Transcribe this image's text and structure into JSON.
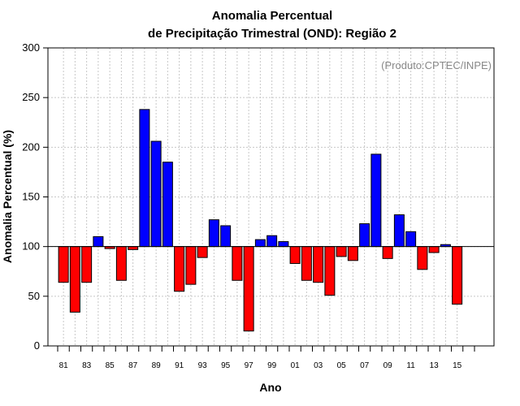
{
  "chart_data": {
    "type": "bar",
    "title_line1": "Anomalia Percentual",
    "title_line2": "de Precipitação Trimestral (OND): Região 2",
    "xlabel": "Ano",
    "ylabel": "Anomalia Percentual (%)",
    "annotation": "(Produto:CPTEC/INPE)",
    "ylim": [
      0,
      300
    ],
    "yticks": [
      0,
      50,
      100,
      150,
      200,
      250,
      300
    ],
    "baseline": 100,
    "colors": {
      "above": "#0000ff",
      "below": "#ff0000"
    },
    "categories": [
      "81",
      "82",
      "83",
      "84",
      "85",
      "86",
      "87",
      "88",
      "89",
      "90",
      "91",
      "92",
      "93",
      "94",
      "95",
      "96",
      "97",
      "98",
      "99",
      "00",
      "01",
      "02",
      "03",
      "04",
      "05",
      "06",
      "07",
      "08",
      "09",
      "10",
      "11",
      "12",
      "13",
      "14",
      "15"
    ],
    "tick_labels": [
      "81",
      "83",
      "85",
      "87",
      "89",
      "91",
      "93",
      "95",
      "97",
      "99",
      "01",
      "03",
      "05",
      "07",
      "09",
      "11",
      "13",
      "15"
    ],
    "values": [
      64,
      34,
      64,
      110,
      98,
      66,
      97,
      238,
      206,
      185,
      55,
      62,
      89,
      127,
      121,
      66,
      15,
      107,
      111,
      105,
      83,
      66,
      64,
      51,
      90,
      86,
      123,
      193,
      88,
      132,
      115,
      77,
      94,
      102,
      42
    ],
    "grid": true
  }
}
